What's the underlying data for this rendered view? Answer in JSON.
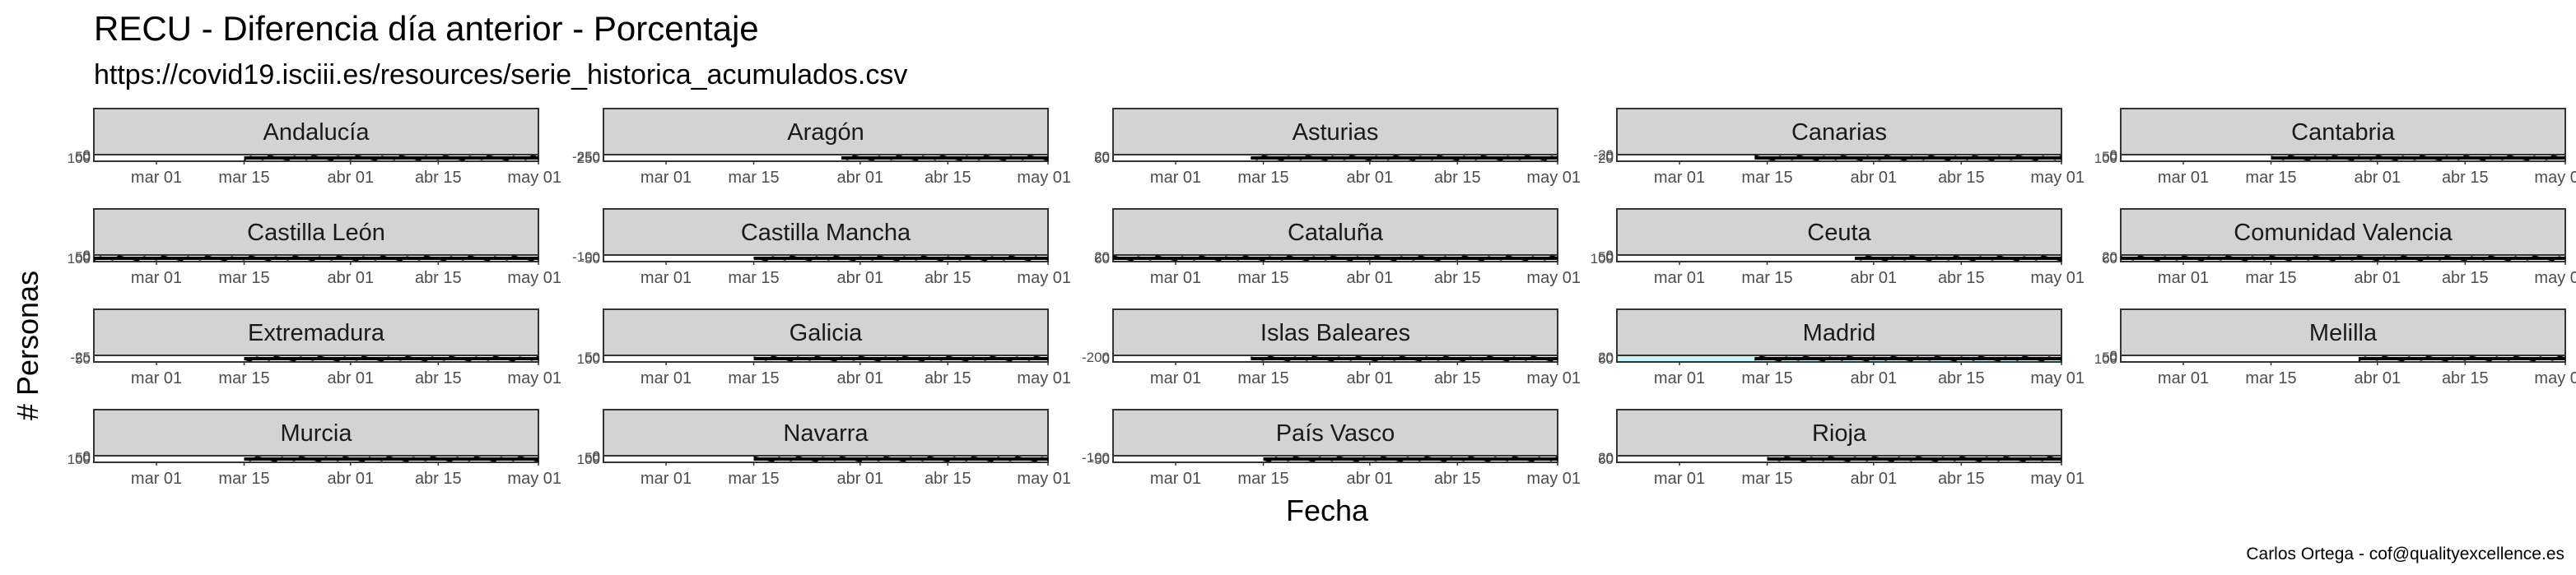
{
  "chart_data": {
    "type": "area",
    "title": "RECU - Diferencia día anterior - Porcentaje",
    "subtitle": "https://covid19.isciii.es/resources/serie_historica_acumulados.csv",
    "xlabel": "Fecha",
    "ylabel": "# Personas",
    "caption": "Carlos Ortega - cof@qualityexcellence.es",
    "x_ticks": [
      "mar 01",
      "mar 15",
      "abr 01",
      "abr 15",
      "may 01"
    ],
    "x_range": [
      "2020-02-20",
      "2020-05-01"
    ],
    "facets": [
      {
        "name": "Andalucía",
        "start_day": 24,
        "y_ticks": [
          "100",
          "50",
          "0"
        ],
        "highlight": false
      },
      {
        "name": "Aragón",
        "start_day": 38,
        "y_ticks": [
          "250",
          "-250"
        ],
        "highlight": false
      },
      {
        "name": "Asturias",
        "start_day": 22,
        "y_ticks": [
          "60",
          "20"
        ],
        "highlight": false
      },
      {
        "name": "Canarias",
        "start_day": 22,
        "y_ticks": [
          "20",
          "0",
          "-20"
        ],
        "highlight": false
      },
      {
        "name": "Cantabria",
        "start_day": 24,
        "y_ticks": [
          "100",
          "50",
          "0"
        ],
        "highlight": false
      },
      {
        "name": "Castilla León",
        "start_day": 0,
        "y_ticks": [
          "100",
          "50",
          "0"
        ],
        "highlight": false
      },
      {
        "name": "Castilla Mancha",
        "start_day": 24,
        "y_ticks": [
          "-50",
          "-100"
        ],
        "highlight": false
      },
      {
        "name": "Cataluña",
        "start_day": 0,
        "y_ticks": [
          "60",
          "20"
        ],
        "highlight": false
      },
      {
        "name": "Ceuta",
        "start_day": 38,
        "y_ticks": [
          "100",
          "50",
          "0"
        ],
        "highlight": false
      },
      {
        "name": "Comunidad Valencia",
        "start_day": 0,
        "y_ticks": [
          "60",
          "20"
        ],
        "highlight": false
      },
      {
        "name": "Extremadura",
        "start_day": 24,
        "y_ticks": [
          "50",
          "-25"
        ],
        "highlight": false
      },
      {
        "name": "Galicia",
        "start_day": 24,
        "y_ticks": [
          "100",
          "50"
        ],
        "highlight": false
      },
      {
        "name": "Islas Baleares",
        "start_day": 22,
        "y_ticks": [
          "0",
          "-200"
        ],
        "highlight": false
      },
      {
        "name": "Madrid",
        "start_day": 22,
        "y_ticks": [
          "60",
          "20"
        ],
        "highlight": true
      },
      {
        "name": "Melilla",
        "start_day": 38,
        "y_ticks": [
          "100",
          "50",
          "0"
        ],
        "highlight": false
      },
      {
        "name": "Murcia",
        "start_day": 24,
        "y_ticks": [
          "100",
          "50",
          "0"
        ],
        "highlight": false
      },
      {
        "name": "Navarra",
        "start_day": 24,
        "y_ticks": [
          "100",
          "50",
          "0"
        ],
        "highlight": false
      },
      {
        "name": "País Vasco",
        "start_day": 24,
        "y_ticks": [
          "-50",
          "-100"
        ],
        "highlight": false
      },
      {
        "name": "Rioja",
        "start_day": 24,
        "y_ticks": [
          "60",
          "20"
        ],
        "highlight": false
      }
    ]
  },
  "colors": {
    "strip_fill": "#d3d3d3",
    "strip_stroke": "#333333",
    "panel_stroke": "#333333",
    "series": "#000000",
    "highlight_fill": "#c7f5f5"
  }
}
